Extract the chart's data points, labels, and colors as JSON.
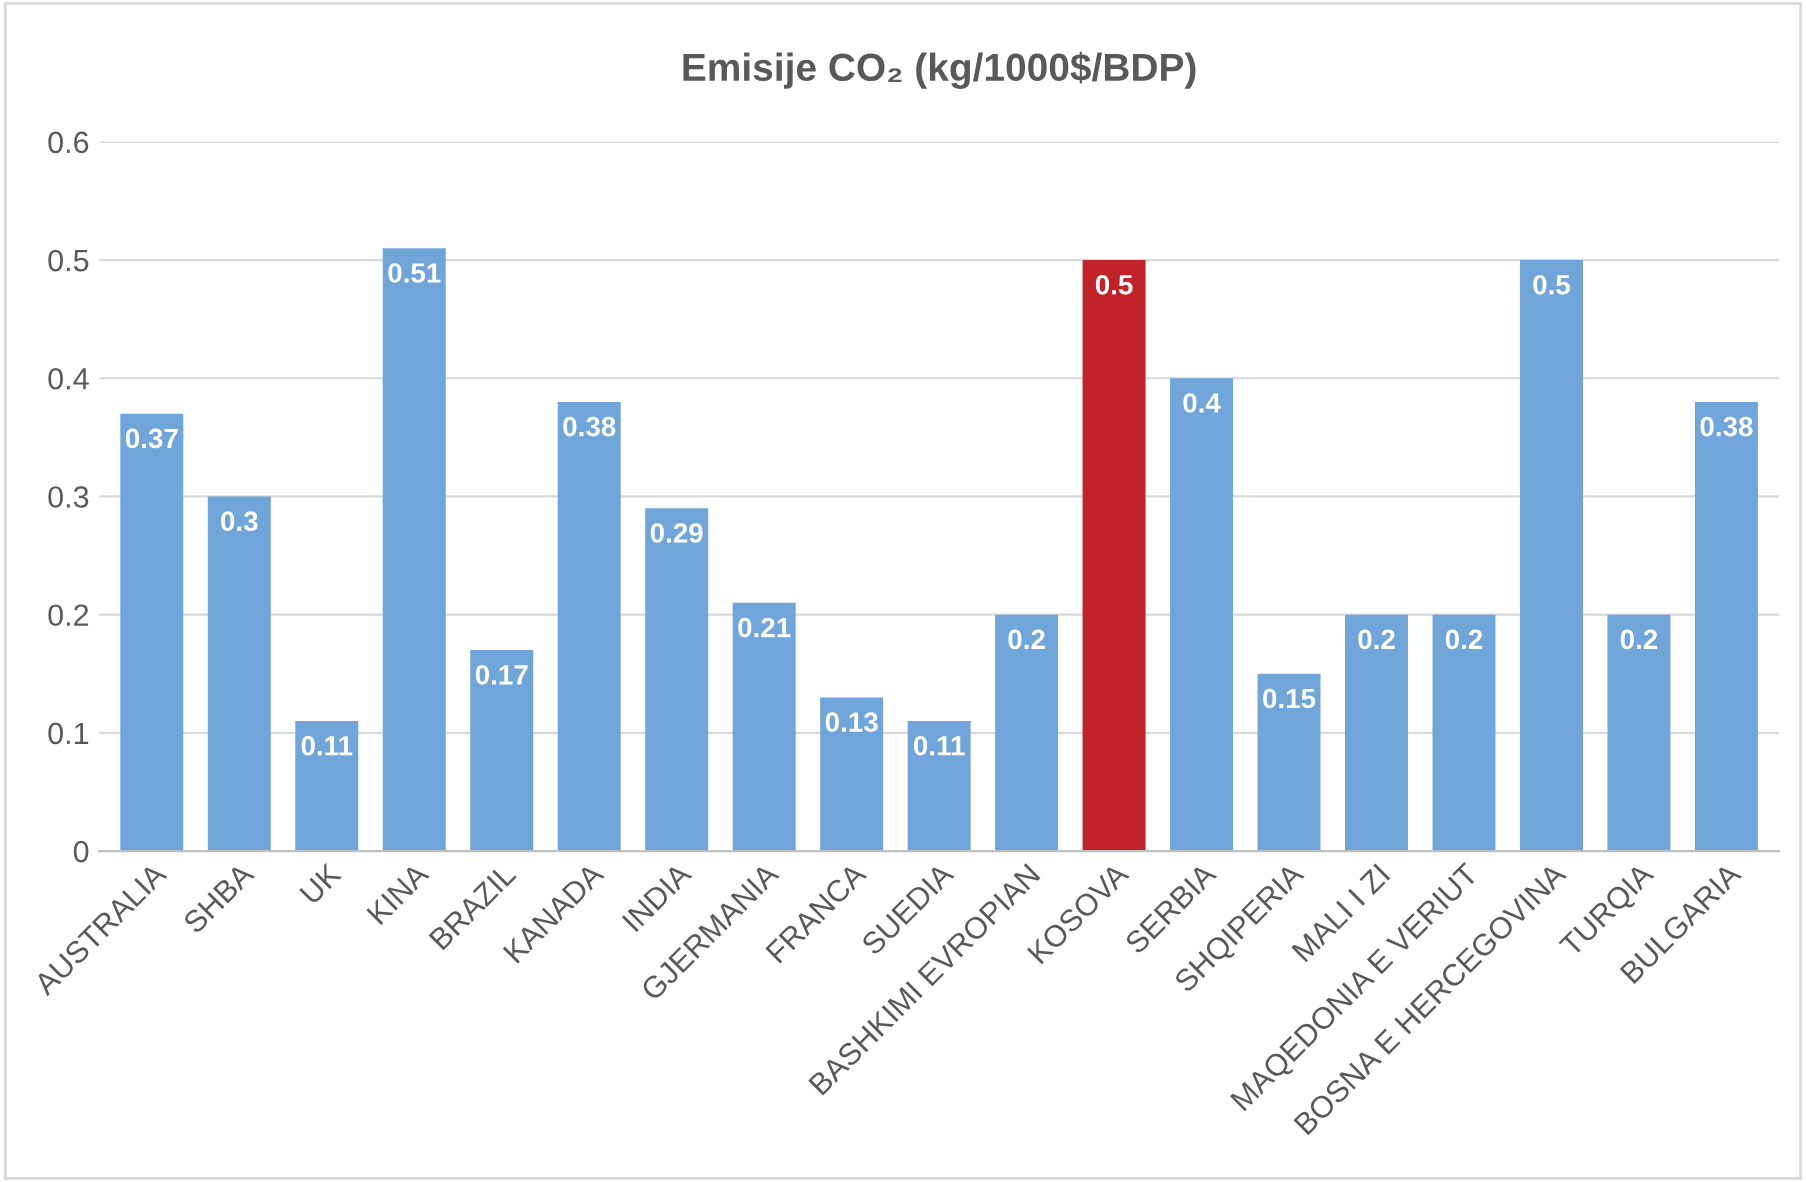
{
  "chart_data": {
    "type": "bar",
    "title": "Emisije CO₂ (kg/1000$/BDP)",
    "categories": [
      "AUSTRALIA",
      "SHBA",
      "UK",
      "KINA",
      "BRAZIL",
      "KANADA",
      "INDIA",
      "GJERMANIA",
      "FRANCA",
      "SUEDIA",
      "BASHKIMI EVROPIAN",
      "KOSOVA",
      "SERBIA",
      "SHQIPERIA",
      "MALI I ZI",
      "MAQEDONIA E VERIUT",
      "BOSNA E HERCEGOVINA",
      "TURQIA",
      "BULGARIA"
    ],
    "values": [
      0.37,
      0.3,
      0.11,
      0.51,
      0.17,
      0.38,
      0.29,
      0.21,
      0.13,
      0.11,
      0.2,
      0.5,
      0.4,
      0.15,
      0.2,
      0.2,
      0.5,
      0.2,
      0.38
    ],
    "colors": [
      "#6fa5d8",
      "#6fa5d8",
      "#6fa5d8",
      "#6fa5d8",
      "#6fa5d8",
      "#6fa5d8",
      "#6fa5d8",
      "#6fa5d8",
      "#6fa5d8",
      "#6fa5d8",
      "#6fa5d8",
      "#c0232a",
      "#6fa5d8",
      "#6fa5d8",
      "#6fa5d8",
      "#6fa5d8",
      "#6fa5d8",
      "#6fa5d8",
      "#6fa5d8"
    ],
    "ylim": [
      0,
      0.6
    ],
    "yticks": [
      0,
      0.1,
      0.2,
      0.3,
      0.4,
      0.5,
      0.6
    ],
    "grid": "y",
    "data_labels": true
  }
}
